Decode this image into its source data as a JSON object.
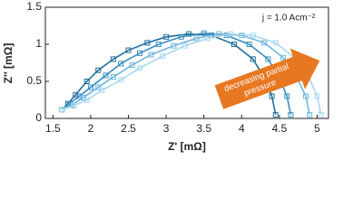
{
  "chart_data": {
    "type": "line",
    "xlabel": "Z' [mΩ]",
    "ylabel": "Z'' [mΩ]",
    "annotation": "j = 1.0 Acm⁻²",
    "arrow_text": [
      "decreasing partial",
      "pressure"
    ],
    "arrow_color": "#e87722",
    "xlim": [
      1.4,
      5.15
    ],
    "ylim": [
      0,
      1.5
    ],
    "xticks": [
      1.5,
      2,
      2.5,
      3,
      3.5,
      4,
      4.5,
      5
    ],
    "yticks": [
      0,
      0.5,
      1,
      1.5
    ],
    "grid": false,
    "series": [
      {
        "color": "#1f6e9c",
        "x": [
          1.62,
          1.7,
          1.8,
          1.95,
          2.1,
          2.3,
          2.5,
          2.75,
          3.0,
          3.3,
          3.6,
          3.9,
          4.15,
          4.3,
          4.4,
          4.45
        ],
        "values": [
          0.12,
          0.2,
          0.32,
          0.5,
          0.65,
          0.8,
          0.92,
          1.02,
          1.1,
          1.14,
          1.12,
          1.0,
          0.8,
          0.55,
          0.3,
          0.05
        ]
      },
      {
        "color": "#3a8fc0",
        "x": [
          1.62,
          1.72,
          1.85,
          2.0,
          2.2,
          2.4,
          2.65,
          2.9,
          3.2,
          3.5,
          3.8,
          4.1,
          4.35,
          4.5,
          4.6,
          4.65
        ],
        "values": [
          0.12,
          0.2,
          0.3,
          0.42,
          0.58,
          0.74,
          0.88,
          1.0,
          1.1,
          1.15,
          1.12,
          1.0,
          0.8,
          0.55,
          0.3,
          0.05
        ]
      },
      {
        "color": "#6fb6dc",
        "x": [
          1.62,
          1.75,
          1.9,
          2.1,
          2.3,
          2.55,
          2.8,
          3.1,
          3.4,
          3.7,
          4.0,
          4.3,
          4.55,
          4.72,
          4.85,
          4.9
        ],
        "values": [
          0.12,
          0.18,
          0.28,
          0.42,
          0.56,
          0.72,
          0.86,
          0.98,
          1.08,
          1.14,
          1.12,
          1.02,
          0.82,
          0.58,
          0.3,
          0.05
        ]
      },
      {
        "color": "#a9d8ef",
        "x": [
          1.62,
          1.78,
          1.95,
          2.15,
          2.4,
          2.65,
          2.95,
          3.25,
          3.55,
          3.85,
          4.15,
          4.45,
          4.7,
          4.88,
          5.0,
          5.05
        ],
        "values": [
          0.12,
          0.17,
          0.25,
          0.38,
          0.52,
          0.68,
          0.84,
          0.98,
          1.08,
          1.14,
          1.12,
          1.02,
          0.82,
          0.58,
          0.3,
          0.05
        ]
      }
    ]
  }
}
